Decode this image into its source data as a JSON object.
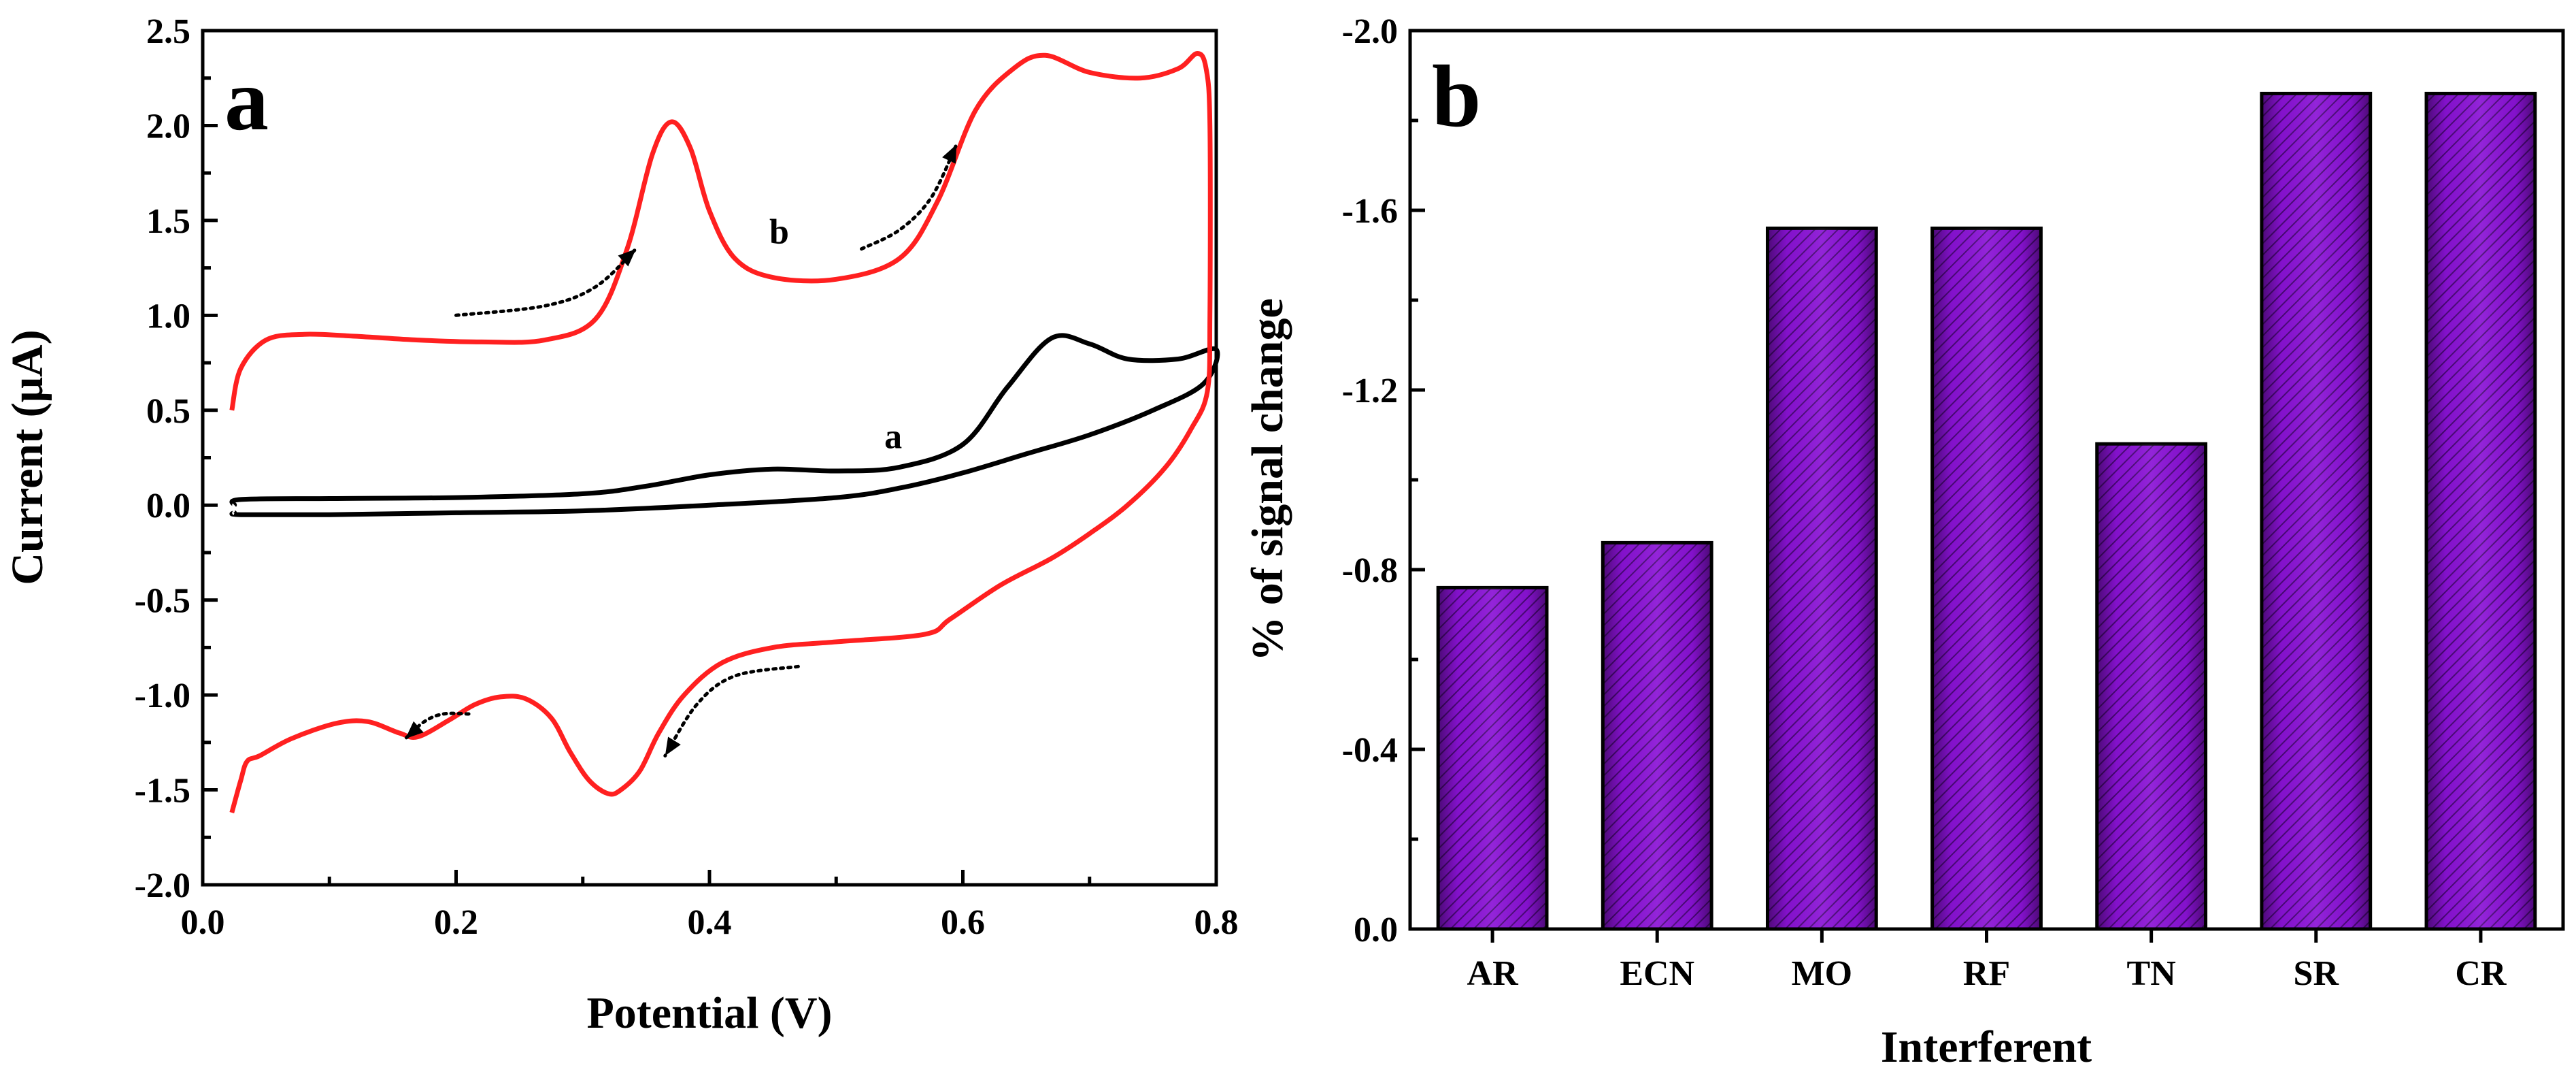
{
  "chart_data": [
    {
      "type": "line",
      "panel": "a",
      "xlabel": "Potential (V)",
      "ylabel": "Current (μA)",
      "xlim": [
        0.0,
        0.8
      ],
      "ylim": [
        -2.0,
        2.5
      ],
      "x_ticks": [
        "0.0",
        "0.2",
        "0.4",
        "0.6",
        "0.8"
      ],
      "y_ticks": [
        "-2.0",
        "-1.5",
        "-1.0",
        "-0.5",
        "0.0",
        "0.5",
        "1.0",
        "1.5",
        "2.0",
        "2.5"
      ],
      "series": [
        {
          "name": "a",
          "color": "#000000",
          "points": [
            [
              0.025,
              0.0
            ],
            [
              0.03,
              0.03
            ],
            [
              0.1,
              0.035
            ],
            [
              0.2,
              0.04
            ],
            [
              0.3,
              0.06
            ],
            [
              0.35,
              0.1
            ],
            [
              0.4,
              0.16
            ],
            [
              0.45,
              0.19
            ],
            [
              0.5,
              0.18
            ],
            [
              0.55,
              0.2
            ],
            [
              0.6,
              0.32
            ],
            [
              0.635,
              0.62
            ],
            [
              0.67,
              0.88
            ],
            [
              0.7,
              0.85
            ],
            [
              0.73,
              0.77
            ],
            [
              0.77,
              0.77
            ],
            [
              0.8,
              0.82
            ],
            [
              0.79,
              0.64
            ],
            [
              0.75,
              0.5
            ],
            [
              0.7,
              0.37
            ],
            [
              0.65,
              0.27
            ],
            [
              0.6,
              0.17
            ],
            [
              0.55,
              0.09
            ],
            [
              0.5,
              0.04
            ],
            [
              0.4,
              0.0
            ],
            [
              0.3,
              -0.03
            ],
            [
              0.2,
              -0.04
            ],
            [
              0.1,
              -0.05
            ],
            [
              0.03,
              -0.05
            ],
            [
              0.025,
              -0.04
            ]
          ]
        },
        {
          "name": "b",
          "color": "#ff2020",
          "points": [
            [
              0.023,
              0.5
            ],
            [
              0.03,
              0.72
            ],
            [
              0.05,
              0.87
            ],
            [
              0.08,
              0.9
            ],
            [
              0.12,
              0.89
            ],
            [
              0.17,
              0.87
            ],
            [
              0.22,
              0.86
            ],
            [
              0.27,
              0.87
            ],
            [
              0.31,
              0.98
            ],
            [
              0.335,
              1.35
            ],
            [
              0.355,
              1.85
            ],
            [
              0.37,
              2.02
            ],
            [
              0.385,
              1.88
            ],
            [
              0.4,
              1.55
            ],
            [
              0.42,
              1.3
            ],
            [
              0.45,
              1.2
            ],
            [
              0.5,
              1.19
            ],
            [
              0.55,
              1.3
            ],
            [
              0.58,
              1.6
            ],
            [
              0.61,
              2.08
            ],
            [
              0.64,
              2.3
            ],
            [
              0.665,
              2.37
            ],
            [
              0.7,
              2.28
            ],
            [
              0.74,
              2.25
            ],
            [
              0.77,
              2.3
            ],
            [
              0.785,
              2.38
            ],
            [
              0.792,
              2.3
            ],
            [
              0.795,
              2.0
            ],
            [
              0.795,
              1.0
            ],
            [
              0.793,
              0.6
            ],
            [
              0.78,
              0.4
            ],
            [
              0.76,
              0.2
            ],
            [
              0.73,
              0.0
            ],
            [
              0.7,
              -0.15
            ],
            [
              0.67,
              -0.28
            ],
            [
              0.63,
              -0.42
            ],
            [
              0.59,
              -0.6
            ],
            [
              0.57,
              -0.68
            ],
            [
              0.5,
              -0.72
            ],
            [
              0.45,
              -0.75
            ],
            [
              0.41,
              -0.83
            ],
            [
              0.38,
              -1.0
            ],
            [
              0.36,
              -1.2
            ],
            [
              0.345,
              -1.4
            ],
            [
              0.33,
              -1.5
            ],
            [
              0.32,
              -1.52
            ],
            [
              0.305,
              -1.45
            ],
            [
              0.29,
              -1.3
            ],
            [
              0.275,
              -1.12
            ],
            [
              0.255,
              -1.02
            ],
            [
              0.235,
              -1.01
            ],
            [
              0.215,
              -1.05
            ],
            [
              0.195,
              -1.13
            ],
            [
              0.17,
              -1.22
            ],
            [
              0.155,
              -1.2
            ],
            [
              0.13,
              -1.14
            ],
            [
              0.105,
              -1.15
            ],
            [
              0.07,
              -1.23
            ],
            [
              0.045,
              -1.32
            ],
            [
              0.035,
              -1.35
            ],
            [
              0.03,
              -1.45
            ],
            [
              0.023,
              -1.62
            ]
          ]
        }
      ],
      "curve_labels": [
        {
          "text": "a",
          "x": 0.545,
          "y": 0.3
        },
        {
          "text": "b",
          "x": 0.455,
          "y": 1.38
        }
      ],
      "arrows": [
        {
          "points": [
            [
              0.2,
              1.0
            ],
            [
              0.27,
              1.05
            ],
            [
              0.31,
              1.15
            ],
            [
              0.342,
              1.35
            ]
          ]
        },
        {
          "points": [
            [
              0.52,
              1.35
            ],
            [
              0.55,
              1.45
            ],
            [
              0.575,
              1.62
            ],
            [
              0.595,
              1.9
            ]
          ]
        },
        {
          "points": [
            [
              0.47,
              -0.85
            ],
            [
              0.42,
              -0.9
            ],
            [
              0.39,
              -1.05
            ],
            [
              0.365,
              -1.32
            ]
          ]
        },
        {
          "points": [
            [
              0.21,
              -1.1
            ],
            [
              0.19,
              -1.1
            ],
            [
              0.175,
              -1.14
            ],
            [
              0.16,
              -1.23
            ]
          ]
        }
      ],
      "panel_label": "a"
    },
    {
      "type": "bar",
      "panel": "b",
      "xlabel": "Interferent",
      "ylabel": "% of signal change",
      "ylim": [
        0.0,
        -2.0
      ],
      "y_ticks": [
        "0.0",
        "-0.4",
        "-0.8",
        "-1.2",
        "-1.6",
        "-2.0"
      ],
      "categories": [
        "AR",
        "ECN",
        "MO",
        "RF",
        "TN",
        "SR",
        "CR"
      ],
      "values": [
        -0.76,
        -0.86,
        -1.56,
        -1.56,
        -1.08,
        -1.86,
        -1.86
      ],
      "bar_color": "#8a12d6",
      "panel_label": "b"
    }
  ]
}
